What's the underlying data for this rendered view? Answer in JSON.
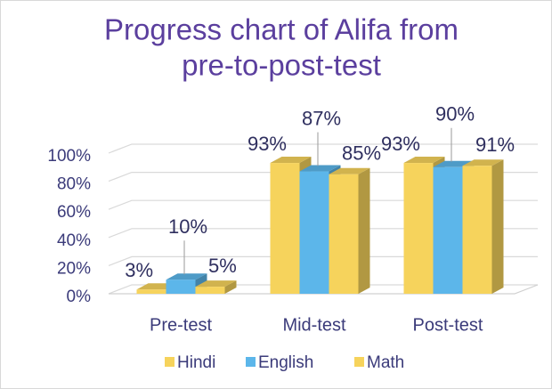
{
  "chart_data": {
    "type": "bar3d",
    "title": [
      "Progress chart of Alifa from",
      "pre-to-post-test"
    ],
    "categories": [
      "Pre-test",
      "Mid-test",
      "Post-test"
    ],
    "series": [
      {
        "name": "Hindi",
        "color": "#f6d35c",
        "values": [
          3,
          93,
          93
        ],
        "value_labels": [
          "3%",
          "93%",
          "93%"
        ]
      },
      {
        "name": "English",
        "color": "#5cb6ea",
        "values": [
          10,
          87,
          90
        ],
        "value_labels": [
          "10%",
          "87%",
          "90%"
        ]
      },
      {
        "name": "Math",
        "color": "#f6d35c",
        "values": [
          5,
          85,
          91
        ],
        "value_labels": [
          "5%",
          "85%",
          "91%"
        ]
      }
    ],
    "ylim": [
      0,
      100
    ],
    "yticks": [
      {
        "value": 0,
        "label": "0%"
      },
      {
        "value": 20,
        "label": "20%"
      },
      {
        "value": 40,
        "label": "40%"
      },
      {
        "value": 60,
        "label": "60%"
      },
      {
        "value": 80,
        "label": "80%"
      },
      {
        "value": 100,
        "label": "100%"
      }
    ],
    "grid": true,
    "legend": "bottom"
  }
}
